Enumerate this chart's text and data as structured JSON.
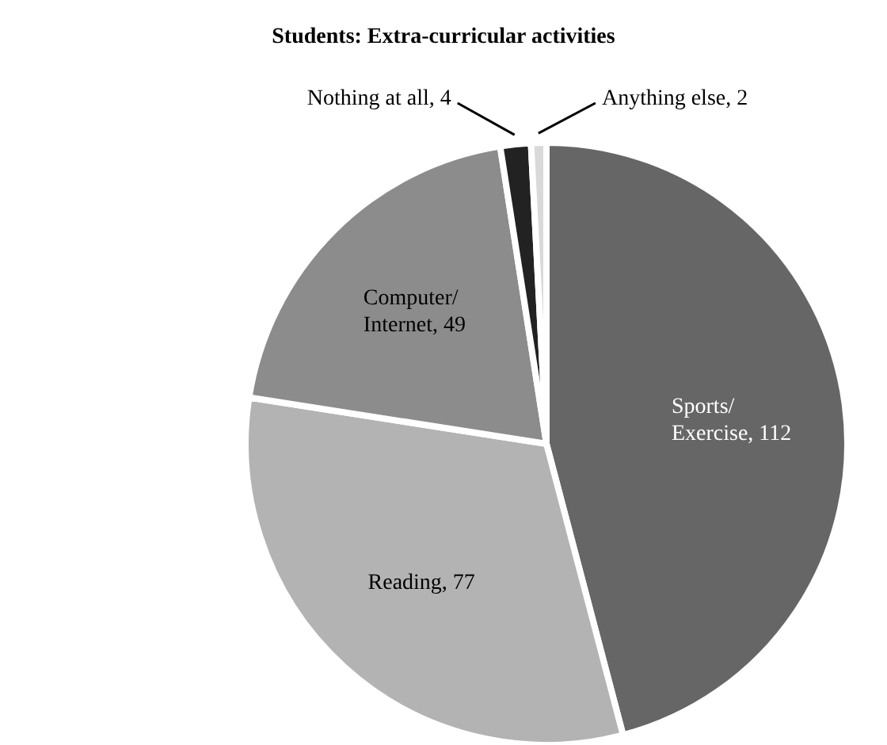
{
  "chart_data": {
    "type": "pie",
    "title": "Students: Extra-curricular activities",
    "categories": [
      "Sports/Exercise",
      "Reading",
      "Computer/Internet",
      "Nothing at all",
      "Anything else"
    ],
    "values": [
      112,
      77,
      49,
      4,
      2
    ],
    "colors": [
      "#666666",
      "#b3b3b3",
      "#8c8c8c",
      "#222222",
      "#d9d9d9"
    ],
    "value_labels": [
      ", 112",
      ", 77",
      ", 49",
      ", 4",
      ", 2"
    ],
    "legend": false
  }
}
